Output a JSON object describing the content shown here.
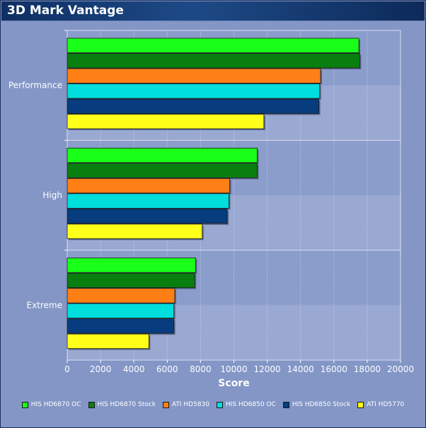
{
  "window": {
    "title": "3D Mark Vantage"
  },
  "chart_data": {
    "type": "bar",
    "orientation": "horizontal",
    "title": "3D Mark Vantage",
    "xlabel": "Score",
    "ylabel": "",
    "xlim": [
      0,
      20000
    ],
    "xticks": [
      0,
      2000,
      4000,
      6000,
      8000,
      10000,
      12000,
      14000,
      16000,
      18000,
      20000
    ],
    "categories": [
      "Performance",
      "High",
      "Extreme"
    ],
    "series": [
      {
        "name": "HIS HD6870 OC",
        "color": "#19ff19",
        "values": [
          17500,
          11400,
          7700
        ]
      },
      {
        "name": "HIS HD6870 Stock",
        "color": "#097f0f",
        "values": [
          17550,
          11400,
          7650
        ]
      },
      {
        "name": "ATI HD5830",
        "color": "#ff7f17",
        "values": [
          15200,
          9750,
          6450
        ]
      },
      {
        "name": "HIS HD6850 OC",
        "color": "#00dddd",
        "values": [
          15150,
          9700,
          6400
        ]
      },
      {
        "name": "HIS HD6850 Stock",
        "color": "#073d7e",
        "values": [
          15100,
          9600,
          6400
        ]
      },
      {
        "name": "ATI HD5770",
        "color": "#ffff19",
        "values": [
          11800,
          8100,
          4900
        ]
      }
    ],
    "grid": true,
    "legend_position": "bottom"
  }
}
